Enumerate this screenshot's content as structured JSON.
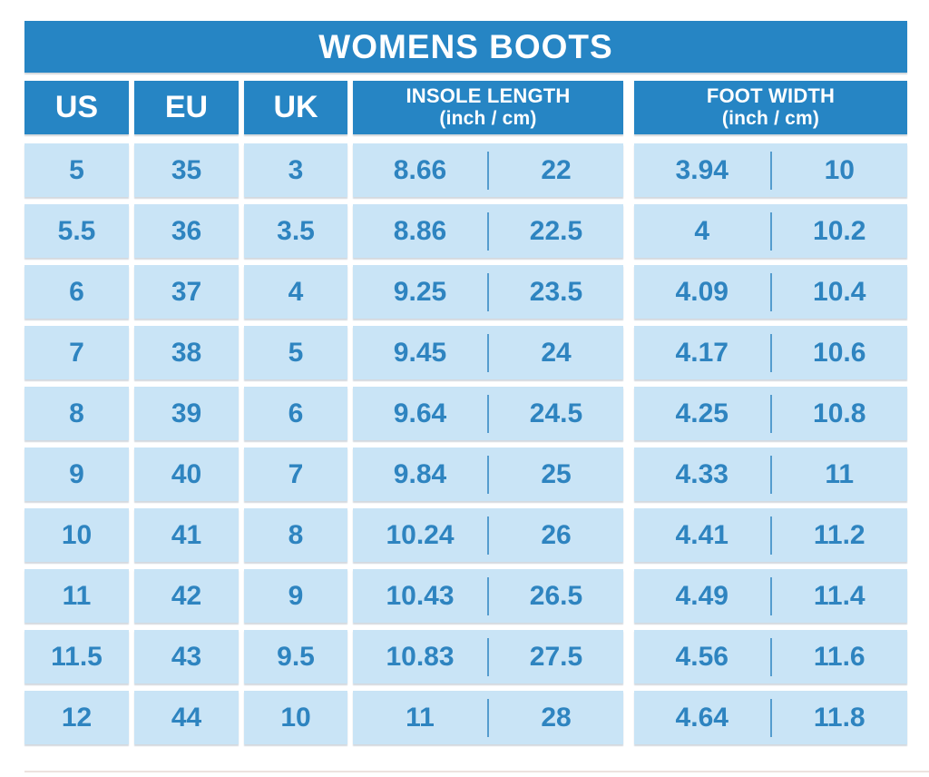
{
  "title": "WOMENS BOOTS",
  "header": {
    "us": "US",
    "eu": "EU",
    "uk": "UK",
    "insole_label": "INSOLE LENGTH",
    "insole_sub": "(inch / cm)",
    "foot_label": "FOOT WIDTH",
    "foot_sub": "(inch / cm)"
  },
  "colors": {
    "header_blue": "#2685c4",
    "cell_blue": "#c9e4f6",
    "text_blue": "#2e84c0",
    "title_text": "#ffffff",
    "bottom_line": "#ece3df"
  },
  "chart_data": {
    "type": "table",
    "title": "WOMENS BOOTS",
    "columns": [
      "US",
      "EU",
      "UK",
      "INSOLE LENGTH (inch / cm)",
      "FOOT WIDTH (inch / cm)"
    ],
    "rows": [
      {
        "us": "5",
        "eu": "35",
        "uk": "3",
        "insole_in": "8.66",
        "insole_cm": "22",
        "width_in": "3.94",
        "width_cm": "10"
      },
      {
        "us": "5.5",
        "eu": "36",
        "uk": "3.5",
        "insole_in": "8.86",
        "insole_cm": "22.5",
        "width_in": "4",
        "width_cm": "10.2"
      },
      {
        "us": "6",
        "eu": "37",
        "uk": "4",
        "insole_in": "9.25",
        "insole_cm": "23.5",
        "width_in": "4.09",
        "width_cm": "10.4"
      },
      {
        "us": "7",
        "eu": "38",
        "uk": "5",
        "insole_in": "9.45",
        "insole_cm": "24",
        "width_in": "4.17",
        "width_cm": "10.6"
      },
      {
        "us": "8",
        "eu": "39",
        "uk": "6",
        "insole_in": "9.64",
        "insole_cm": "24.5",
        "width_in": "4.25",
        "width_cm": "10.8"
      },
      {
        "us": "9",
        "eu": "40",
        "uk": "7",
        "insole_in": "9.84",
        "insole_cm": "25",
        "width_in": "4.33",
        "width_cm": "11"
      },
      {
        "us": "10",
        "eu": "41",
        "uk": "8",
        "insole_in": "10.24",
        "insole_cm": "26",
        "width_in": "4.41",
        "width_cm": "11.2"
      },
      {
        "us": "11",
        "eu": "42",
        "uk": "9",
        "insole_in": "10.43",
        "insole_cm": "26.5",
        "width_in": "4.49",
        "width_cm": "11.4"
      },
      {
        "us": "11.5",
        "eu": "43",
        "uk": "9.5",
        "insole_in": "10.83",
        "insole_cm": "27.5",
        "width_in": "4.56",
        "width_cm": "11.6"
      },
      {
        "us": "12",
        "eu": "44",
        "uk": "10",
        "insole_in": "11",
        "insole_cm": "28",
        "width_in": "4.64",
        "width_cm": "11.8"
      }
    ]
  }
}
